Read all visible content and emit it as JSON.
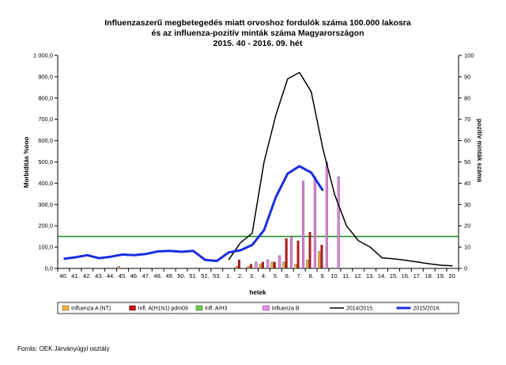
{
  "chart_data": {
    "type": "bar",
    "title_lines": [
      "Influenzaszerű megbetegedés miatt orvoshoz fordulók száma 100.000 lakosra",
      "és az influenza-pozitív minták száma Magyarországon",
      "2015. 40 - 2016. 09. hét"
    ],
    "xlabel": "hetek",
    "ylabel_left": "Morbiditás %ooo",
    "ylabel_right": "pozitív minták száma",
    "ylim_left": [
      0,
      1000
    ],
    "ylim_right": [
      0,
      100
    ],
    "y_ticks_left": [
      "0,0",
      "100,0",
      "200,0",
      "300,0",
      "400,0",
      "500,0",
      "600,0",
      "700,0",
      "800,0",
      "900,0",
      "1 000,0"
    ],
    "y_ticks_right": [
      "0",
      "10",
      "20",
      "30",
      "40",
      "50",
      "60",
      "70",
      "80",
      "90",
      "100"
    ],
    "categories": [
      "40.",
      "41.",
      "42.",
      "43.",
      "44.",
      "45.",
      "46.",
      "47.",
      "48.",
      "49.",
      "50.",
      "51.",
      "52.",
      "53.",
      "1.",
      "2.",
      "3.",
      "4.",
      "5.",
      "6.",
      "7.",
      "8.",
      "9.",
      "10.",
      "11.",
      "12.",
      "13.",
      "14.",
      "15.",
      "16.",
      "17.",
      "18.",
      "19.",
      "20."
    ],
    "bar_series": [
      {
        "name": "Influenza A (NT)",
        "color": "#f2b33d",
        "values": [
          null,
          null,
          null,
          null,
          null,
          1,
          null,
          null,
          null,
          null,
          null,
          null,
          null,
          null,
          null,
          1,
          1,
          2,
          3,
          3,
          2,
          4,
          8,
          null,
          null,
          null,
          null,
          null,
          null,
          null,
          null,
          null,
          null,
          null
        ]
      },
      {
        "name": "Infl. A(H1N1) pdm09",
        "color": "#cc1111",
        "values": [
          null,
          null,
          null,
          null,
          null,
          null,
          null,
          null,
          null,
          null,
          null,
          null,
          null,
          null,
          null,
          4,
          2,
          3,
          3,
          14,
          13,
          17,
          11,
          null,
          null,
          null,
          null,
          null,
          null,
          null,
          null,
          null,
          null,
          null
        ]
      },
      {
        "name": "Infl. A/H3",
        "color": "#66cc44",
        "values": [
          null,
          null,
          null,
          null,
          null,
          null,
          null,
          null,
          null,
          null,
          null,
          null,
          null,
          null,
          null,
          null,
          null,
          null,
          null,
          null,
          null,
          null,
          null,
          null,
          null,
          null,
          null,
          null,
          null,
          null,
          null,
          null,
          null,
          null
        ]
      },
      {
        "name": "Influenza B",
        "color": "#ee88ee",
        "values": [
          null,
          null,
          null,
          null,
          null,
          null,
          null,
          null,
          null,
          null,
          null,
          null,
          null,
          null,
          null,
          null,
          3,
          4,
          6,
          15,
          41,
          43,
          50,
          43,
          null,
          null,
          null,
          null,
          null,
          null,
          null,
          null,
          null,
          null
        ]
      }
    ],
    "line_series": [
      {
        "name": "2014/2015.",
        "color": "#000000",
        "values": [
          null,
          null,
          null,
          null,
          null,
          null,
          null,
          null,
          null,
          null,
          null,
          null,
          null,
          null,
          40,
          120,
          165,
          500,
          720,
          890,
          920,
          830,
          560,
          345,
          200,
          130,
          100,
          50,
          45,
          38,
          30,
          22,
          15,
          12
        ]
      },
      {
        "name": "2015/2016.",
        "color": "#1a2ee0",
        "values": [
          45,
          52,
          62,
          48,
          55,
          65,
          62,
          68,
          80,
          82,
          78,
          82,
          40,
          35,
          75,
          85,
          110,
          180,
          335,
          445,
          480,
          450,
          365,
          null,
          null,
          null,
          null,
          null,
          null,
          null,
          null,
          null,
          null,
          null
        ]
      }
    ],
    "threshold": {
      "value": 150,
      "color": "#1a8a1a"
    },
    "legend_position": "bottom",
    "grid": false
  },
  "source": "Forrás: OEK Járványügyi osztály"
}
